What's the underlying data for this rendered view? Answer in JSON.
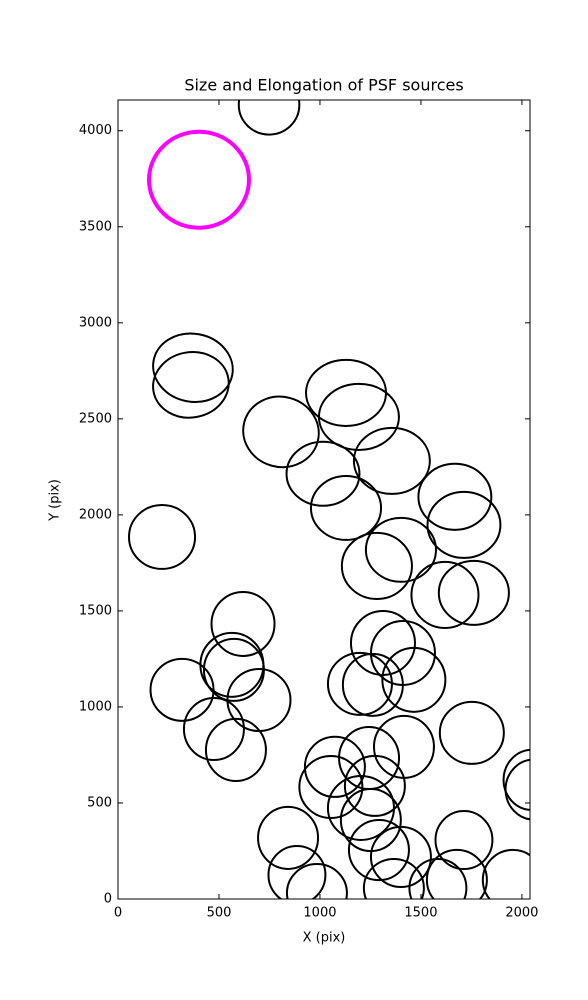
{
  "chart_data": {
    "type": "ellipse",
    "title": "Size and Elongation of PSF sources",
    "xlabel": "X (pix)",
    "ylabel": "Y (pix)",
    "xlim": [
      0,
      2040
    ],
    "ylim": [
      0,
      4160
    ],
    "xticks": [
      0,
      500,
      1000,
      1500,
      2000
    ],
    "yticks": [
      0,
      500,
      1000,
      1500,
      2000,
      2500,
      3000,
      3500,
      4000
    ],
    "color": "#000000",
    "ellipses": {
      "x": [
        748,
        371,
        361,
        218,
        807,
        1129,
        1193,
        1015,
        1129,
        1356,
        1668,
        1713,
        1401,
        1282,
        1619,
        1762,
        619,
        564,
        574,
        317,
        698,
        475,
        584,
        1312,
        1411,
        1465,
        1198,
        1262,
        1416,
        1752,
        1074,
        1243,
        1054,
        1272,
        1203,
        1252,
        1292,
        1401,
        842,
        886,
        985,
        1713,
        1366,
        1584,
        1678,
        1955,
        2050,
        2060
      ],
      "y": [
        4135,
        2766,
        2677,
        1885,
        2432,
        2635,
        2510,
        2214,
        2036,
        2281,
        2094,
        1948,
        1818,
        1734,
        1583,
        1594,
        1432,
        1219,
        1193,
        1089,
        1036,
        885,
        776,
        1333,
        1281,
        1141,
        1120,
        1115,
        792,
        865,
        688,
        734,
        583,
        589,
        474,
        411,
        255,
        219,
        318,
        125,
        31,
        307,
        57,
        57,
        99,
        99,
        620,
        570
      ],
      "width": [
        300,
        396,
        376,
        327,
        376,
        396,
        396,
        361,
        347,
        376,
        361,
        361,
        347,
        347,
        332,
        347,
        312,
        312,
        297,
        312,
        312,
        297,
        297,
        317,
        317,
        312,
        317,
        297,
        297,
        317,
        297,
        297,
        312,
        297,
        327,
        297,
        297,
        297,
        297,
        282,
        297,
        282,
        297,
        282,
        297,
        297,
        282,
        282
      ],
      "height": [
        310,
        354,
        340,
        333,
        365,
        344,
        344,
        333,
        333,
        344,
        344,
        344,
        333,
        344,
        344,
        333,
        333,
        333,
        323,
        323,
        323,
        323,
        323,
        333,
        333,
        333,
        323,
        323,
        323,
        323,
        313,
        323,
        323,
        313,
        333,
        323,
        313,
        313,
        323,
        302,
        302,
        302,
        302,
        302,
        313,
        313,
        313,
        313
      ],
      "angle": [
        0,
        -10,
        10,
        0,
        -15,
        0,
        0,
        0,
        0,
        0,
        0,
        0,
        0,
        0,
        0,
        0,
        0,
        0,
        0,
        0,
        0,
        0,
        0,
        0,
        0,
        0,
        0,
        0,
        0,
        0,
        0,
        0,
        0,
        0,
        0,
        0,
        0,
        0,
        0,
        0,
        0,
        0,
        0,
        0,
        0,
        0,
        0,
        0
      ]
    },
    "highlight": {
      "x": 401,
      "y": 3745,
      "width": 495,
      "height": 500,
      "angle": 0,
      "color": "#ff00ff"
    }
  }
}
